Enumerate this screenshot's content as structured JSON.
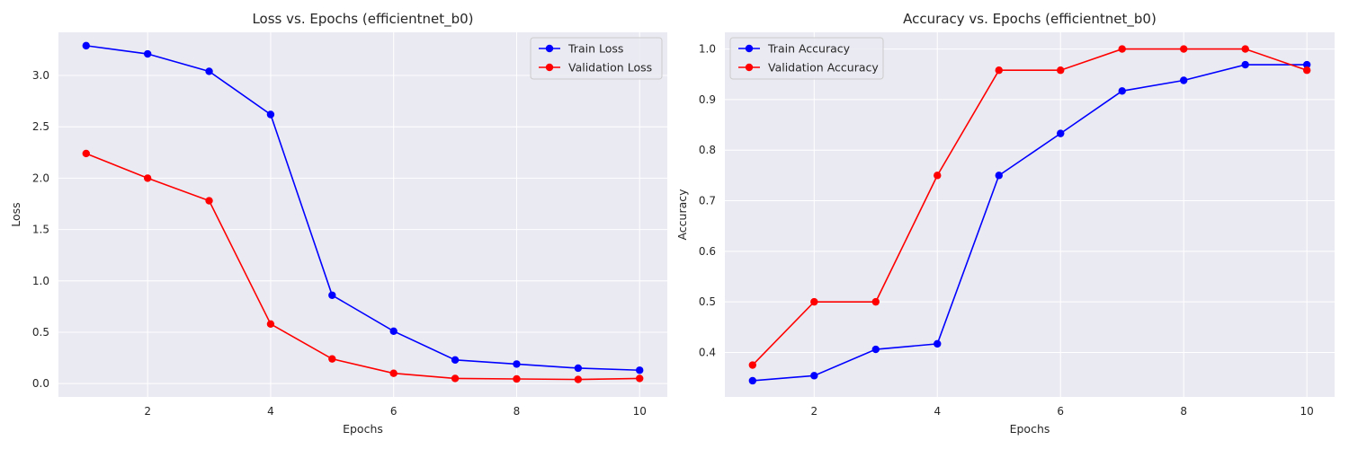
{
  "chart_data": [
    {
      "type": "line",
      "title": "Loss vs. Epochs (efficientnet_b0)",
      "xlabel": "Epochs",
      "ylabel": "Loss",
      "xlim": [
        0.55,
        10.45
      ],
      "ylim": [
        -0.13,
        3.42
      ],
      "xticks": [
        2,
        4,
        6,
        8,
        10
      ],
      "yticks": [
        0.0,
        0.5,
        1.0,
        1.5,
        2.0,
        2.5,
        3.0
      ],
      "ytick_labels": [
        "0.0",
        "0.5",
        "1.0",
        "1.5",
        "2.0",
        "2.5",
        "3.0"
      ],
      "grid": true,
      "legend_position": "top-right",
      "x": [
        1,
        2,
        3,
        4,
        5,
        6,
        7,
        8,
        9,
        10
      ],
      "series": [
        {
          "name": "Train Loss",
          "color": "#0000ff",
          "values": [
            3.29,
            3.21,
            3.04,
            2.62,
            0.86,
            0.51,
            0.23,
            0.19,
            0.15,
            0.13
          ]
        },
        {
          "name": "Validation Loss",
          "color": "#ff0000",
          "values": [
            2.24,
            2.0,
            1.78,
            0.58,
            0.24,
            0.1,
            0.05,
            0.045,
            0.04,
            0.05
          ]
        }
      ]
    },
    {
      "type": "line",
      "title": "Accuracy vs. Epochs (efficientnet_b0)",
      "xlabel": "Epochs",
      "ylabel": "Accuracy",
      "xlim": [
        0.55,
        10.45
      ],
      "ylim": [
        0.312,
        1.033
      ],
      "xticks": [
        2,
        4,
        6,
        8,
        10
      ],
      "yticks": [
        0.4,
        0.5,
        0.6,
        0.7,
        0.8,
        0.9,
        1.0
      ],
      "ytick_labels": [
        "0.4",
        "0.5",
        "0.6",
        "0.7",
        "0.8",
        "0.9",
        "1.0"
      ],
      "grid": true,
      "legend_position": "top-left",
      "x": [
        1,
        2,
        3,
        4,
        5,
        6,
        7,
        8,
        9,
        10
      ],
      "series": [
        {
          "name": "Train Accuracy",
          "color": "#0000ff",
          "values": [
            0.344,
            0.354,
            0.406,
            0.417,
            0.75,
            0.833,
            0.917,
            0.938,
            0.969,
            0.969
          ]
        },
        {
          "name": "Validation Accuracy",
          "color": "#ff0000",
          "values": [
            0.375,
            0.5,
            0.5,
            0.75,
            0.958,
            0.958,
            1.0,
            1.0,
            1.0,
            0.958
          ]
        }
      ]
    }
  ],
  "colors": {
    "plot_background": "#eaeaf2",
    "grid": "#ffffff",
    "text": "#262626"
  }
}
